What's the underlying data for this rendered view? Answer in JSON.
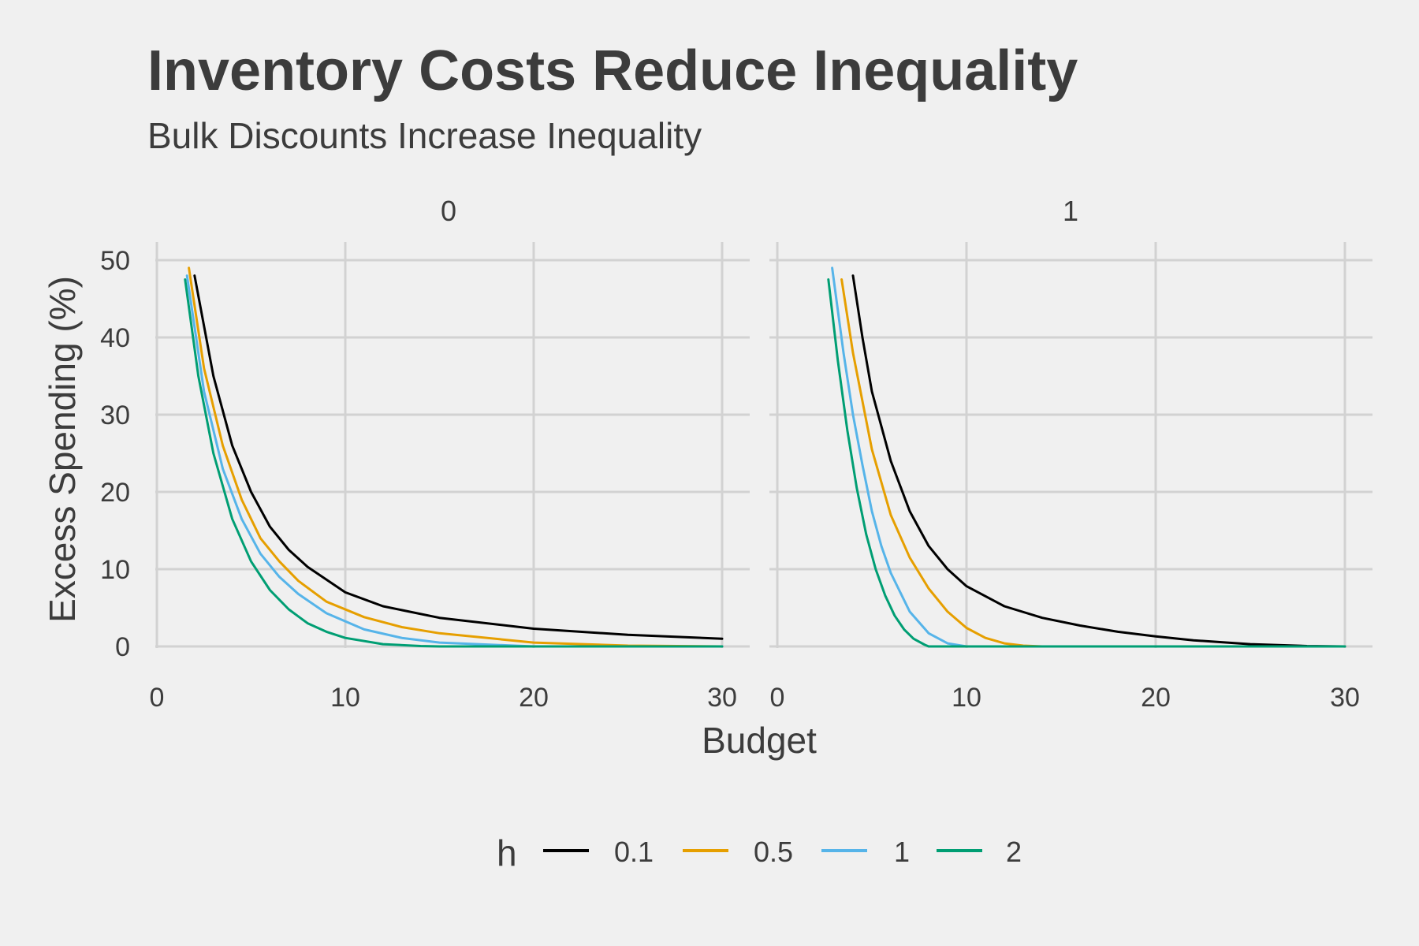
{
  "chart_data": {
    "type": "line",
    "title": "Inventory Costs Reduce Inequality",
    "subtitle": "Bulk Discounts Increase Inequality",
    "xlabel": "Budget",
    "ylabel": "Excess Spending (%)",
    "xlim": [
      0,
      30
    ],
    "ylim": [
      0,
      50
    ],
    "x_ticks": [
      "0",
      "10",
      "20",
      "30"
    ],
    "y_ticks": [
      "0",
      "10",
      "20",
      "30",
      "40",
      "50"
    ],
    "grid": true,
    "legend": {
      "title": "h",
      "position": "bottom",
      "entries": [
        "0.1",
        "0.5",
        "1",
        "2"
      ]
    },
    "series_colors": {
      "0.1": "#000000",
      "0.5": "#e69f00",
      "1": "#56b4e9",
      "2": "#009e73"
    },
    "panels": [
      {
        "label": "0",
        "series": [
          {
            "name": "0.1",
            "x": [
              2,
              3,
              4,
              5,
              6,
              7,
              8,
              10,
              12,
              15,
              20,
              25,
              30
            ],
            "y": [
              48,
              35,
              26,
              20,
              15.5,
              12.5,
              10.3,
              7,
              5.2,
              3.7,
              2.3,
              1.5,
              1
            ]
          },
          {
            "name": "0.5",
            "x": [
              1.7,
              2.5,
              3.5,
              4.5,
              5.5,
              6.5,
              7.5,
              9,
              11,
              13,
              15,
              20,
              25,
              30
            ],
            "y": [
              49,
              36,
              26,
              19,
              14,
              11,
              8.5,
              5.8,
              3.8,
              2.5,
              1.7,
              0.5,
              0.1,
              0
            ]
          },
          {
            "name": "1",
            "x": [
              1.6,
              2.5,
              3.5,
              4.5,
              5.5,
              6.5,
              7.5,
              9,
              11,
              13,
              15,
              20,
              25,
              30
            ],
            "y": [
              48,
              33,
              23,
              16.5,
              12,
              9,
              6.8,
              4.3,
              2.2,
              1.1,
              0.5,
              0,
              0,
              0
            ]
          },
          {
            "name": "2",
            "x": [
              1.5,
              2.2,
              3,
              4,
              5,
              6,
              7,
              8,
              9,
              10,
              12,
              14,
              15,
              20,
              25,
              30
            ],
            "y": [
              47.5,
              35,
              25,
              16.5,
              11,
              7.3,
              4.8,
              3,
              1.9,
              1.1,
              0.3,
              0.05,
              0,
              0,
              0,
              0
            ]
          }
        ]
      },
      {
        "label": "1",
        "series": [
          {
            "name": "0.1",
            "x": [
              4,
              4.5,
              5,
              6,
              7,
              8,
              9,
              10,
              12,
              14,
              16,
              18,
              20,
              22,
              25,
              28,
              30
            ],
            "y": [
              48,
              40,
              33,
              24,
              17.5,
              13,
              10,
              7.8,
              5.2,
              3.7,
              2.7,
              1.9,
              1.3,
              0.8,
              0.3,
              0.05,
              0
            ]
          },
          {
            "name": "0.5",
            "x": [
              3.4,
              4,
              5,
              6,
              7,
              8,
              9,
              10,
              11,
              12,
              13,
              14,
              15,
              30
            ],
            "y": [
              47.5,
              38,
              25.5,
              17,
              11.5,
              7.5,
              4.5,
              2.4,
              1.1,
              0.4,
              0.1,
              0,
              0,
              0
            ]
          },
          {
            "name": "1",
            "x": [
              2.9,
              3.5,
              4,
              4.5,
              5,
              5.5,
              6,
              7,
              8,
              9,
              10,
              30
            ],
            "y": [
              49,
              38,
              30,
              23.5,
              17.5,
              13,
              9.5,
              4.5,
              1.7,
              0.4,
              0,
              0
            ]
          },
          {
            "name": "2",
            "x": [
              2.7,
              3.2,
              3.7,
              4.2,
              4.7,
              5.2,
              5.7,
              6.2,
              6.7,
              7.2,
              7.8,
              8,
              30
            ],
            "y": [
              47.5,
              37,
              28,
              20.5,
              14.5,
              10,
              6.6,
              4,
              2.2,
              1,
              0.2,
              0,
              0
            ]
          }
        ]
      }
    ]
  }
}
